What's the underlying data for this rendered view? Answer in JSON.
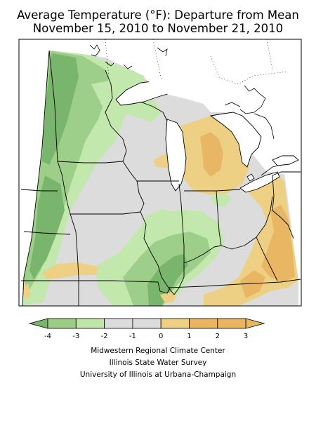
{
  "title": {
    "line1": "Average Temperature (°F): Departure from Mean",
    "line2": "November 15, 2010 to November 21, 2010"
  },
  "legend": {
    "ticks": [
      "-4",
      "-3",
      "-2",
      "-1",
      "0",
      "1",
      "2",
      "3"
    ],
    "colors": [
      "#78b46a",
      "#9ccc85",
      "#bfe6a8",
      "#dcdcdc",
      "#dcdcdc",
      "#eecf84",
      "#eab461"
    ]
  },
  "colors": {
    "cold3": "#7ab56e",
    "cold2": "#9dce8a",
    "cold1": "#c2e8ae",
    "neutral": "#dcdcdc",
    "warm1": "#eed084",
    "warm2": "#e9b663",
    "boundary": "#000000",
    "water": "#ffffff"
  },
  "credits": {
    "line1": "Midwestern Regional Climate Center",
    "line2": "Illinois State Water Survey",
    "line3": "University of Illinois at Urbana-Champaign"
  }
}
